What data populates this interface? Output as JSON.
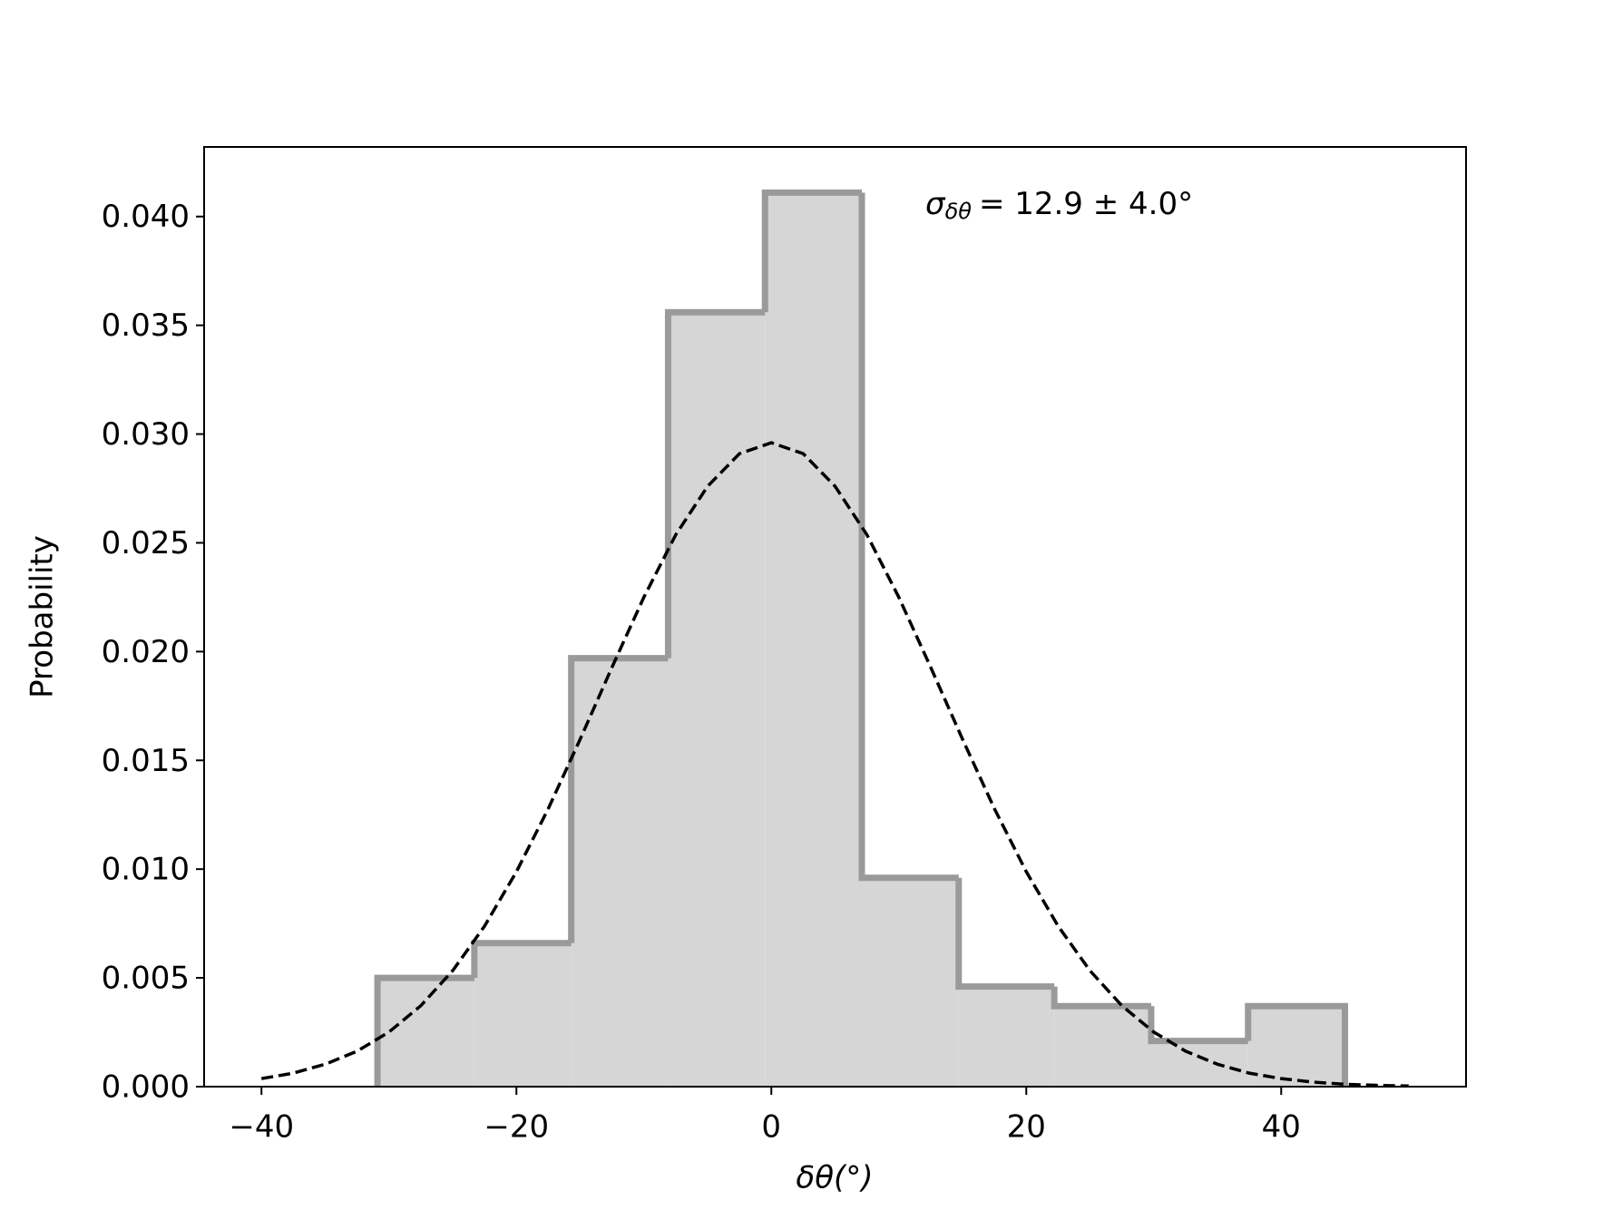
{
  "chart_data": {
    "type": "histogram",
    "annotation": {
      "symbol": "σ",
      "subscript": "δθ",
      "text": "= 12.9 ± 4.0°"
    },
    "x_label": "δθ(°)",
    "y_label": "Probability",
    "bins": [
      -30.9,
      -23.3,
      -15.7,
      -8.1,
      -0.5,
      7.1,
      14.7,
      22.2,
      29.8,
      37.4,
      45.0
    ],
    "counts": [
      0.005,
      0.0066,
      0.0197,
      0.0356,
      0.0411,
      0.0096,
      0.0046,
      0.0037,
      0.0021,
      0.0037
    ],
    "color": "#d6d6d6",
    "edge_color": "#9a9a9a",
    "fit": {
      "color": "#000000",
      "x": [
        -40,
        -37.5,
        -35,
        -32.5,
        -30,
        -27.5,
        -25,
        -22.5,
        -20,
        -17.5,
        -15,
        -12.5,
        -10,
        -7.5,
        -5,
        -2.5,
        0,
        2.5,
        5,
        7.5,
        10,
        12.5,
        15,
        17.5,
        20,
        22.5,
        25,
        27.5,
        30,
        32.5,
        35,
        37.5,
        40,
        42.5,
        45,
        47.5,
        50
      ],
      "values": [
        0.00037,
        0.00062,
        0.00103,
        0.00163,
        0.00251,
        0.00372,
        0.00533,
        0.00738,
        0.00988,
        0.01278,
        0.01597,
        0.01928,
        0.0225,
        0.02537,
        0.0276,
        0.0291,
        0.0296,
        0.0291,
        0.0276,
        0.02537,
        0.0225,
        0.01928,
        0.01597,
        0.01278,
        0.00988,
        0.00738,
        0.00533,
        0.00372,
        0.00251,
        0.00163,
        0.00103,
        0.00062,
        0.00037,
        0.00021,
        0.00011,
        6e-05,
        3e-05
      ]
    },
    "xlim": [
      -44.5,
      54.5
    ],
    "xticks": [
      {
        "value": -40,
        "label": "−40"
      },
      {
        "value": -20,
        "label": "−20"
      },
      0,
      20,
      40
    ],
    "ylim": [
      0,
      0.0432
    ],
    "yticks": [
      {
        "value": 0,
        "label": "0.000"
      },
      {
        "value": 0.005,
        "label": "0.005"
      },
      {
        "value": 0.01,
        "label": "0.010"
      },
      {
        "value": 0.015,
        "label": "0.015"
      },
      {
        "value": 0.02,
        "label": "0.020"
      },
      {
        "value": 0.025,
        "label": "0.025"
      },
      {
        "value": 0.03,
        "label": "0.030"
      },
      {
        "value": 0.035,
        "label": "0.035"
      },
      {
        "value": 0.04,
        "label": "0.040"
      }
    ]
  }
}
